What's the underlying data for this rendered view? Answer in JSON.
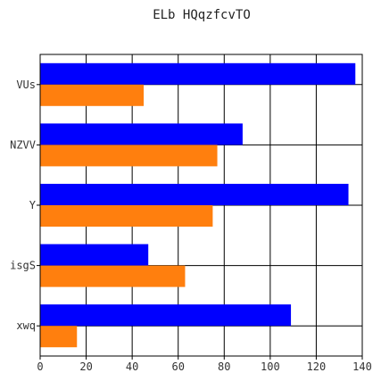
{
  "chart_data": {
    "type": "bar",
    "orientation": "horizontal",
    "title": "ELb HQqzfcvTO",
    "xlabel": "",
    "ylabel": "",
    "categories": [
      "VUs",
      "NZVV",
      "Y",
      "isgS",
      "xwq"
    ],
    "series": [
      {
        "color": "#0000ff",
        "values": [
          137,
          88,
          134,
          47,
          109
        ]
      },
      {
        "color": "#ff7f0e",
        "values": [
          45,
          77,
          75,
          63,
          16
        ]
      }
    ],
    "xlim": [
      0,
      140
    ],
    "xticks": [
      0,
      20,
      40,
      60,
      80,
      100,
      120,
      140
    ],
    "xtick_labels": [
      "0",
      "20",
      "40",
      "60",
      "80",
      "100",
      "120",
      "140"
    ],
    "grid": true,
    "legend": "none"
  }
}
